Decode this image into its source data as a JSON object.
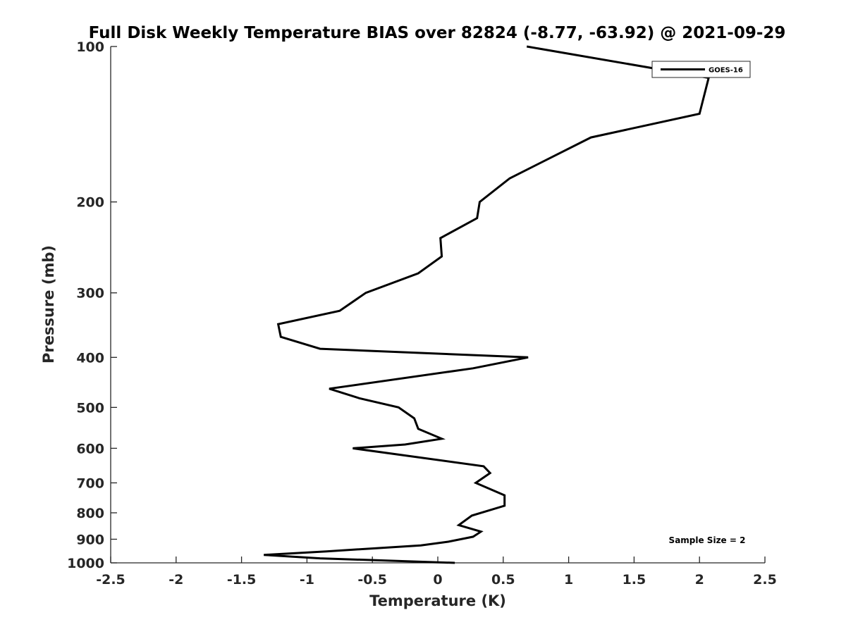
{
  "chart_data": {
    "type": "line",
    "title": "Full Disk Weekly Temperature BIAS over 82824 (-8.77, -63.92) @ 2021-09-29",
    "xlabel": "Temperature (K)",
    "ylabel": "Pressure (mb)",
    "xlim": [
      -2.5,
      2.5
    ],
    "ylim": [
      1000,
      100
    ],
    "yscale": "log",
    "y_reversed": true,
    "x_ticks": [
      -2.5,
      -2,
      -1.5,
      -1,
      -0.5,
      0,
      0.5,
      1,
      1.5,
      2,
      2.5
    ],
    "x_tick_labels": [
      "-2.5",
      "-2",
      "-1.5",
      "-1",
      "-0.5",
      "0",
      "0.5",
      "1",
      "1.5",
      "2",
      "2.5"
    ],
    "y_ticks": [
      100,
      200,
      300,
      400,
      500,
      600,
      700,
      800,
      900,
      1000
    ],
    "y_tick_labels": [
      "100",
      "200",
      "300",
      "400",
      "500",
      "600",
      "700",
      "800",
      "900",
      "1000"
    ],
    "grid": false,
    "legend_position": "top-right",
    "series": [
      {
        "name": "GOES-16",
        "color": "#000000",
        "points": [
          {
            "x": 0.68,
            "y": 100
          },
          {
            "x": 2.07,
            "y": 115
          },
          {
            "x": 2.0,
            "y": 135
          },
          {
            "x": 1.17,
            "y": 150
          },
          {
            "x": 0.55,
            "y": 180
          },
          {
            "x": 0.32,
            "y": 200
          },
          {
            "x": 0.3,
            "y": 215
          },
          {
            "x": 0.02,
            "y": 235
          },
          {
            "x": 0.03,
            "y": 255
          },
          {
            "x": -0.15,
            "y": 275
          },
          {
            "x": -0.55,
            "y": 300
          },
          {
            "x": -0.75,
            "y": 325
          },
          {
            "x": -1.22,
            "y": 345
          },
          {
            "x": -1.2,
            "y": 365
          },
          {
            "x": -0.9,
            "y": 385
          },
          {
            "x": 0.69,
            "y": 400
          },
          {
            "x": 0.27,
            "y": 420
          },
          {
            "x": -0.83,
            "y": 460
          },
          {
            "x": -0.6,
            "y": 480
          },
          {
            "x": -0.3,
            "y": 500
          },
          {
            "x": -0.18,
            "y": 525
          },
          {
            "x": -0.15,
            "y": 550
          },
          {
            "x": 0.03,
            "y": 575
          },
          {
            "x": -0.25,
            "y": 590
          },
          {
            "x": -0.65,
            "y": 600
          },
          {
            "x": 0.35,
            "y": 650
          },
          {
            "x": 0.4,
            "y": 670
          },
          {
            "x": 0.29,
            "y": 700
          },
          {
            "x": 0.51,
            "y": 740
          },
          {
            "x": 0.51,
            "y": 775
          },
          {
            "x": 0.26,
            "y": 810
          },
          {
            "x": 0.16,
            "y": 845
          },
          {
            "x": 0.33,
            "y": 870
          },
          {
            "x": 0.27,
            "y": 890
          },
          {
            "x": 0.08,
            "y": 910
          },
          {
            "x": -0.13,
            "y": 925
          },
          {
            "x": -0.85,
            "y": 950
          },
          {
            "x": -1.33,
            "y": 965
          },
          {
            "x": -0.9,
            "y": 980
          },
          {
            "x": 0.13,
            "y": 1000
          }
        ]
      }
    ],
    "annotation": "Sample Size = 2"
  }
}
